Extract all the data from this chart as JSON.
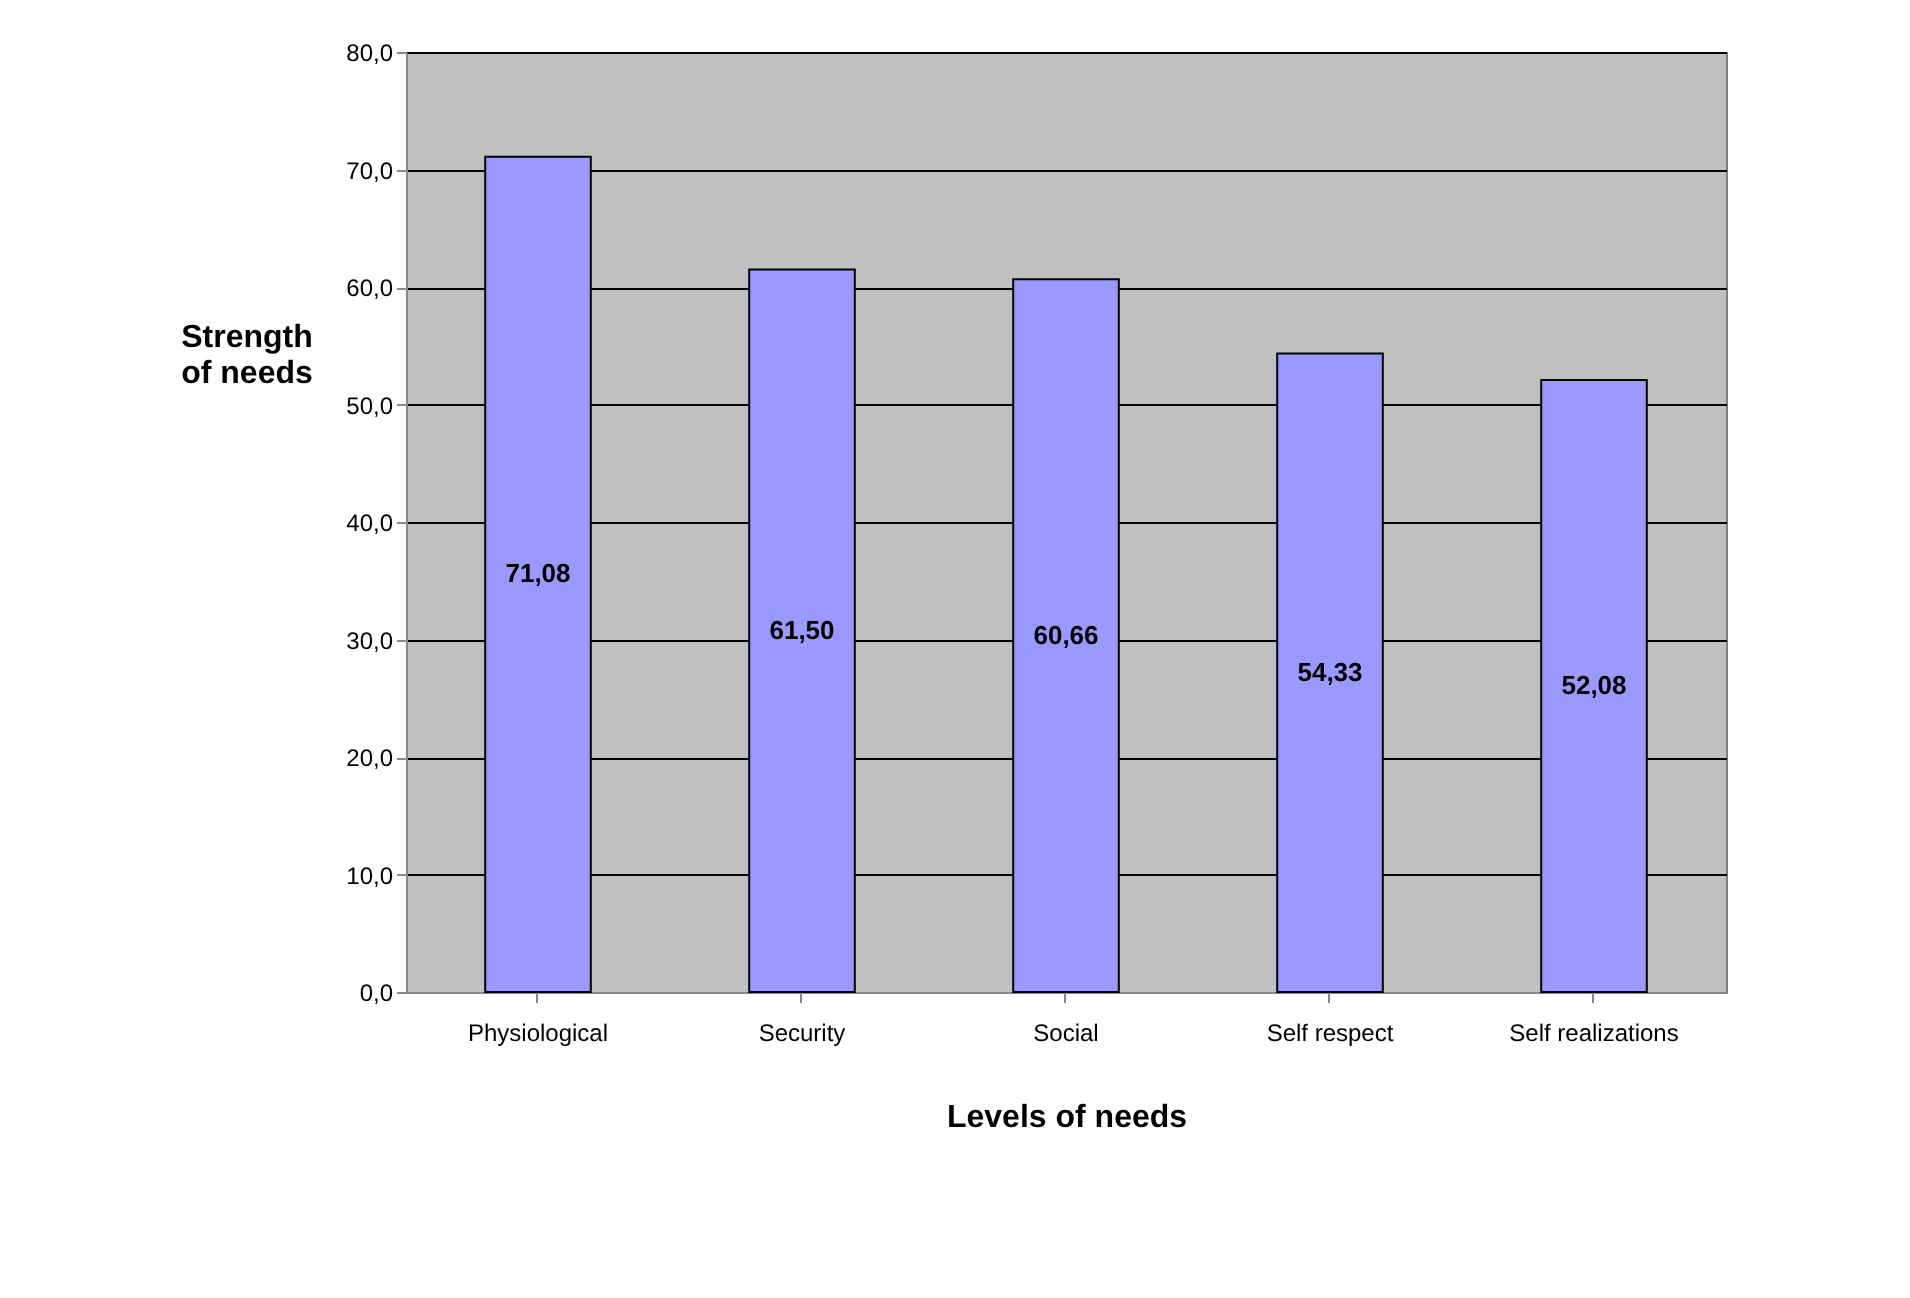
{
  "chart_data": {
    "type": "bar",
    "xlabel": "Levels of needs",
    "ylabel": "Strength\nof needs",
    "categories": [
      "Physiological",
      "Security",
      "Social",
      "Self respect",
      "Self realizations"
    ],
    "values": [
      71.08,
      61.5,
      60.66,
      54.33,
      52.08
    ],
    "value_labels": [
      "71,08",
      "61,50",
      "60,66",
      "54,33",
      "52,08"
    ],
    "color": "#9999ff",
    "ylim": [
      0,
      80
    ],
    "yticks": [
      {
        "value": 0,
        "label": "0,0"
      },
      {
        "value": 10,
        "label": "10,0"
      },
      {
        "value": 20,
        "label": "20,0"
      },
      {
        "value": 30,
        "label": "30,0"
      },
      {
        "value": 40,
        "label": "40,0"
      },
      {
        "value": 50,
        "label": "50,0"
      },
      {
        "value": 60,
        "label": "60,0"
      },
      {
        "value": 70,
        "label": "70,0"
      },
      {
        "value": 80,
        "label": "80,0"
      }
    ],
    "grid": "y"
  }
}
